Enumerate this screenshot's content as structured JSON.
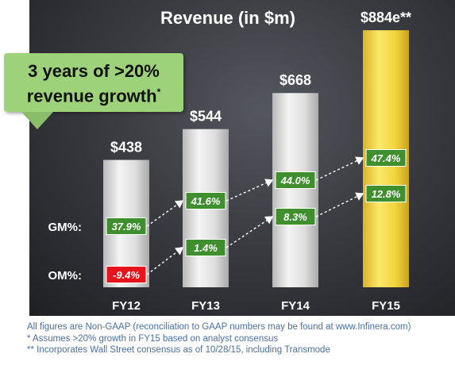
{
  "chart_data": {
    "type": "bar",
    "title": "Revenue (in $m)",
    "categories": [
      "FY12",
      "FY13",
      "FY14",
      "FY15"
    ],
    "values": [
      438,
      544,
      668,
      884
    ],
    "value_labels": [
      "$438",
      "$544",
      "$668",
      "$884e**"
    ],
    "highlighted_category": "FY15",
    "bar_colors": {
      "default": "#d9d9d9",
      "highlight": "#f3d83d"
    },
    "series_overlays": [
      {
        "name": "GM%:",
        "values": [
          "37.9%",
          "41.6%",
          "44.0%",
          "47.4%"
        ],
        "box_colors": [
          "#3f8f2f",
          "#3f8f2f",
          "#3f8f2f",
          "#3f8f2f"
        ]
      },
      {
        "name": "OM%:",
        "values": [
          "-9.4%",
          "1.4%",
          "8.3%",
          "12.8%"
        ],
        "box_colors": [
          "#e8141c",
          "#3f8f2f",
          "#3f8f2f",
          "#3f8f2f"
        ]
      }
    ],
    "background": "#3a3c42"
  },
  "callout": {
    "line1": "3 years of >20%",
    "line2": "revenue growth",
    "marker": "*"
  },
  "footnotes": [
    "All figures are Non-GAAP (reconciliation to GAAP numbers may be found at www.Infinera.com)",
    "*   Assumes >20% growth in FY15 based on analyst consensus",
    "** Incorporates Wall Street consensus as of 10/28/15,  including Transmode"
  ]
}
